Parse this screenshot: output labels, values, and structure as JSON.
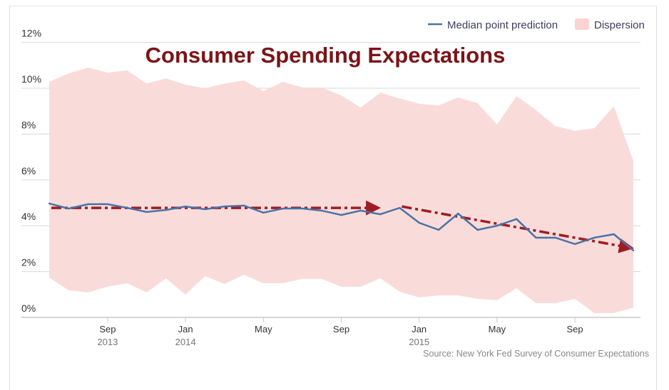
{
  "chart_data": {
    "type": "area",
    "title": "Consumer Spending Expectations",
    "source": "Source: New York Fed Survey of Consumer Expectations",
    "legend": {
      "placement": "top-right",
      "items": [
        "Median point prediction",
        "Dispersion"
      ]
    },
    "colors": {
      "median": "#4a72a6",
      "dispersion": "#f9dad8",
      "trend": "#a01c22",
      "title": "#7b1418"
    },
    "ylim": [
      0,
      12
    ],
    "yticks": [
      "0%",
      "2%",
      "4%",
      "6%",
      "8%",
      "10%",
      "12%"
    ],
    "grid": true,
    "x": [
      "2013-06",
      "2013-07",
      "2013-08",
      "2013-09",
      "2013-10",
      "2013-11",
      "2013-12",
      "2014-01",
      "2014-02",
      "2014-03",
      "2014-04",
      "2014-05",
      "2014-06",
      "2014-07",
      "2014-08",
      "2014-09",
      "2014-10",
      "2014-11",
      "2014-12",
      "2015-01",
      "2015-02",
      "2015-03",
      "2015-04",
      "2015-05",
      "2015-06",
      "2015-07",
      "2015-08",
      "2015-09",
      "2015-10",
      "2015-11",
      "2015-12"
    ],
    "xticks": [
      {
        "month": "Sep",
        "year": "2013",
        "x": "2013-09"
      },
      {
        "month": "Jan",
        "year": "2014",
        "x": "2014-01"
      },
      {
        "month": "May",
        "year": "",
        "x": "2014-05"
      },
      {
        "month": "Sep",
        "year": "",
        "x": "2014-09"
      },
      {
        "month": "Jan",
        "year": "2015",
        "x": "2015-01"
      },
      {
        "month": "May",
        "year": "",
        "x": "2015-05"
      },
      {
        "month": "Sep",
        "year": "",
        "x": "2015-09"
      }
    ],
    "series": [
      {
        "name": "Median point prediction",
        "type": "line",
        "values": [
          4.97,
          4.75,
          4.94,
          4.94,
          4.78,
          4.6,
          4.69,
          4.84,
          4.72,
          4.84,
          4.88,
          4.57,
          4.75,
          4.75,
          4.66,
          4.47,
          4.66,
          4.5,
          4.78,
          4.13,
          3.82,
          4.53,
          3.82,
          4.0,
          4.29,
          3.48,
          3.48,
          3.2,
          3.48,
          3.63,
          2.92
        ]
      },
      {
        "name": "Dispersion",
        "type": "arearange",
        "high": [
          10.28,
          10.65,
          10.9,
          10.68,
          10.78,
          10.2,
          10.43,
          10.15,
          10.0,
          10.2,
          10.34,
          9.88,
          10.28,
          10.03,
          10.03,
          9.69,
          9.16,
          9.81,
          9.56,
          9.32,
          9.25,
          9.6,
          9.35,
          8.42,
          9.66,
          9.04,
          8.35,
          8.14,
          8.26,
          9.22,
          6.83
        ],
        "low": [
          1.74,
          1.18,
          1.09,
          1.34,
          1.49,
          1.09,
          1.71,
          0.99,
          1.8,
          1.46,
          1.86,
          1.49,
          1.49,
          1.68,
          1.68,
          1.34,
          1.34,
          1.71,
          1.12,
          0.87,
          0.96,
          0.96,
          0.81,
          0.75,
          1.27,
          0.62,
          0.62,
          0.81,
          0.19,
          0.19,
          0.43
        ]
      }
    ],
    "annotations": [
      {
        "type": "trend-arrow",
        "from": [
          "2013-06",
          4.78
        ],
        "to": [
          "2014-11",
          4.78
        ]
      },
      {
        "type": "trend-arrow",
        "from": [
          "2014-12",
          4.84
        ],
        "to": [
          "2015-12",
          3.05
        ]
      }
    ]
  }
}
